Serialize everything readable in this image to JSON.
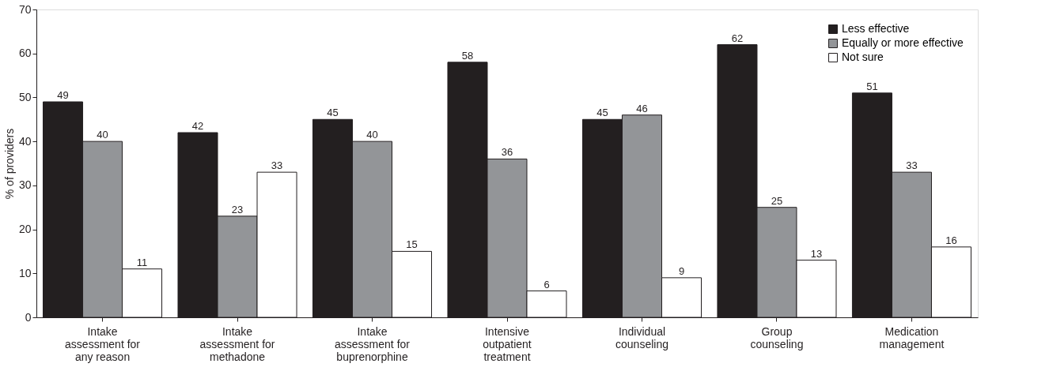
{
  "chart_data": {
    "type": "bar",
    "ylabel": "% of providers",
    "categories": [
      "Intake assessment for any reason",
      "Intake assessment for methadone",
      "Intake assessment for buprenorphine",
      "Intensive outpatient treatment",
      "Individual counseling",
      "Group counseling",
      "Medication management"
    ],
    "series": [
      {
        "name": "Less effective",
        "color": "#231f20",
        "values": [
          49,
          42,
          45,
          58,
          45,
          62,
          51
        ]
      },
      {
        "name": "Equally or more effective",
        "color": "#939598",
        "values": [
          40,
          23,
          40,
          36,
          46,
          25,
          33
        ]
      },
      {
        "name": "Not sure",
        "color": "#ffffff",
        "values": [
          11,
          33,
          15,
          6,
          9,
          13,
          16
        ]
      }
    ],
    "ylim": [
      0,
      70
    ],
    "yticks": [
      0,
      10,
      20,
      30,
      40,
      50,
      60,
      70
    ],
    "grid": false,
    "legend": "top right",
    "data_labels": true
  }
}
